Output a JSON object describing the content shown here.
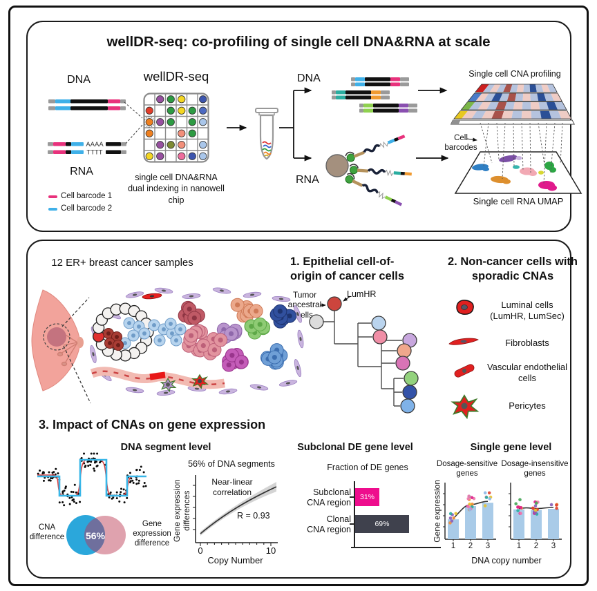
{
  "palette": {
    "barcode1": "#e8327c",
    "barcode2": "#3fb0e8",
    "venn_blue": "#2ba7db",
    "venn_pink": "#dfa2ae",
    "venn_overlap": "#6f6f9d",
    "subclonal_bar_magenta": "#ee0d8d",
    "clonal_bar_dark": "#3f414d",
    "expression_bar_lightblue": "#a9cbe8"
  },
  "top_panel": {
    "title": "wellDR-seq: co-profiling of single cell DNA&RNA at scale",
    "left": {
      "dna_label": "DNA",
      "rna_label": "RNA",
      "aaaa": "AAAA",
      "tttt": "TTTT",
      "legend": [
        {
          "label": "Cell barcode 1"
        },
        {
          "label": "Cell barcode 2"
        }
      ]
    },
    "chip": {
      "label": "wellDR-seq",
      "caption": "single cell DNA&RNA dual indexing in nanowell chip",
      "grid": [
        [
          "",
          "pu",
          "gr",
          "ye",
          "",
          "nv"
        ],
        [
          "rd",
          "",
          "gr",
          "ye",
          "gr",
          "bl"
        ],
        [
          "or",
          "pu",
          "gr",
          "",
          "gr",
          "lb"
        ],
        [
          "or",
          "",
          "",
          "sa",
          "gr",
          ""
        ],
        [
          "",
          "pu",
          "ol",
          "sa",
          "",
          "lb"
        ],
        [
          "ye",
          "pu",
          "",
          "pk",
          "nv",
          "lb"
        ]
      ],
      "well_palette": {
        "pu": "#9750a0",
        "gr": "#2e9b43",
        "ye": "#f4d623",
        "nv": "#3c55ae",
        "rd": "#e33d2a",
        "bl": "#4d6ac2",
        "or": "#ef8020",
        "lb": "#a9c6ea",
        "sa": "#f28f7a",
        "ol": "#7d8a33",
        "pk": "#ee6d9d"
      }
    },
    "split": {
      "dna_label": "DNA",
      "rna_label": "RNA",
      "barcode_pairs": [
        [
          "#3fb0e8",
          "#e8327c"
        ],
        [
          "#2aada0",
          "#f09a30"
        ],
        [
          "#8fd14f",
          "#8a4fb0"
        ]
      ]
    },
    "outputs": {
      "cna_title": "Single cell CNA profiling",
      "cell_barcodes_label": "Cell barcodes",
      "umap_title": "Single cell RNA UMAP",
      "heatmap": {
        "label_colors": [
          "#cc1f1f",
          "#4a7bc8",
          "#7ab648",
          "#e8c820",
          "#909090"
        ],
        "cell_colors": {
          "lb": "#b5c3de",
          "pk": "#efccc5",
          "dr": "#a8524a",
          "nv": "#2b4f96"
        },
        "rows": [
          [
            "lb",
            "pk",
            "lb",
            "dr",
            "lb",
            "pk",
            "lb",
            "nv",
            "lb",
            "pk",
            "lb"
          ],
          [
            "pk",
            "lb",
            "nv",
            "lb",
            "dr",
            "lb",
            "pk",
            "lb",
            "nv",
            "lb",
            "pk"
          ],
          [
            "lb",
            "pk",
            "lb",
            "dr",
            "lb",
            "pk",
            "lb",
            "pk",
            "lb",
            "nv",
            "lb"
          ],
          [
            "pk",
            "lb",
            "pk",
            "dr",
            "pk",
            "lb",
            "pk",
            "lb",
            "nv",
            "lb",
            "pk"
          ]
        ]
      },
      "umap_cluster_colors": [
        "#7b4fa6",
        "#c9b3e0",
        "#2f7fc4",
        "#35b5ad",
        "#f2a9b4",
        "#2ca644",
        "#d8d832",
        "#dd8f2e",
        "#e01a8c"
      ]
    }
  },
  "bottom_panel": {
    "samples_title": "12 ER+ breast cancer samples",
    "section1": {
      "title": "1. Epithelial cell-of-origin of cancer cells",
      "tumor_ancestral_label": "Tumor ancestral cells",
      "lumhr_label": "LumHR",
      "tree_node_colors": [
        "#dcdcdc",
        "#cc453d",
        "#bad4ee",
        "#f08ea6",
        "#c8a7de",
        "#f0a78c",
        "#d974b6",
        "#93d27d",
        "#3352a8",
        "#7fb2e8"
      ]
    },
    "section2": {
      "title": "2. Non-cancer cells with sporadic CNAs",
      "cell_types": [
        "Luminal cells (LumHR, LumSec)",
        "Fibroblasts",
        "Vascular endothelial cells",
        "Pericytes"
      ]
    },
    "section3": {
      "title": "3. Impact of CNAs on gene expression",
      "dna_segment_title": "DNA segment level",
      "venn": {
        "left": "CNA difference",
        "right": "Gene expression difference",
        "overlap": "56%"
      },
      "subclonal_title": "Subclonal DE gene level",
      "single_gene_title": "Single gene level"
    }
  },
  "chart_data": [
    {
      "name": "copy-number-correlation",
      "type": "line",
      "title": "56% of DNA segments",
      "annotation": "Near-linear correlation",
      "r_label": "R = 0.93",
      "xlabel": "Copy Number",
      "ylabel": "Gene expression differences",
      "x_tick_labels": [
        "0",
        "10"
      ],
      "xlim": [
        -1,
        11
      ],
      "description": "smoothed increasing correlation curve with gray confidence band"
    },
    {
      "name": "fraction-of-de-genes",
      "type": "bar",
      "orientation": "horizontal",
      "title": "Subclonal DE gene level",
      "subtitle": "Fraction of DE genes",
      "categories": [
        "Subclonal\nCNA region",
        "Clonal\nCNA region"
      ],
      "values": [
        31,
        69
      ],
      "value_labels": [
        "31%",
        "69%"
      ],
      "bar_colors": [
        "#ee0d8d",
        "#3f414d"
      ],
      "xlim": [
        0,
        100
      ]
    },
    {
      "name": "single-gene-dosage",
      "type": "bar",
      "title": "Single gene level",
      "xlabel": "DNA copy number",
      "ylabel": "Gene expression",
      "categories": [
        "1",
        "2",
        "3"
      ],
      "series": [
        {
          "name": "Dosage-sensitive genes",
          "values": [
            0.36,
            0.6,
            0.66
          ]
        },
        {
          "name": "Dosage-insensitive genes",
          "values": [
            0.54,
            0.53,
            0.55
          ]
        }
      ],
      "bar_color": "#a9cbe8",
      "ylim": [
        0,
        1
      ]
    }
  ]
}
